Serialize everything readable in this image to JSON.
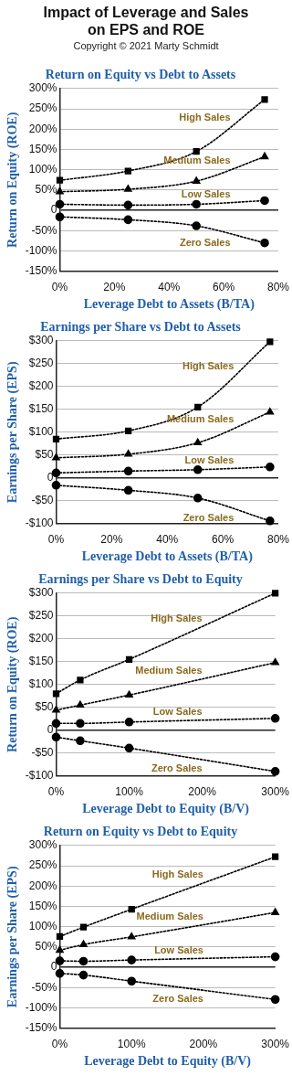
{
  "chart_data": [
    {
      "type": "other",
      "title": "Impact of Leverage and Sales on EPS and ROE",
      "subtitle": "Copyright © 2021 Marty Schmidt"
    },
    {
      "type": "line",
      "title": "Return on Equity vs Debt to Assets",
      "xlabel": "Leverage Debt to Assets (B/TA)",
      "ylabel": "Return on Equity (ROE)",
      "x": [
        0,
        25,
        50,
        75
      ],
      "xlim": [
        0,
        80
      ],
      "xticks": [
        {
          "value": 0,
          "label": "0%"
        },
        {
          "value": 20,
          "label": "20%"
        },
        {
          "value": 40,
          "label": "40%"
        },
        {
          "value": 60,
          "label": "60%"
        },
        {
          "value": 80,
          "label": "80%"
        }
      ],
      "ylim": [
        -150,
        300
      ],
      "yticks": [
        {
          "value": -150,
          "label": "-150%"
        },
        {
          "value": -100,
          "label": "-100%"
        },
        {
          "value": -50,
          "label": "-50%"
        },
        {
          "value": 0,
          "label": "0"
        },
        {
          "value": 50,
          "label": "50%"
        },
        {
          "value": 100,
          "label": "100%"
        },
        {
          "value": 150,
          "label": "150%"
        },
        {
          "value": 200,
          "label": "200%"
        },
        {
          "value": 250,
          "label": "250%"
        },
        {
          "value": 300,
          "label": "300%"
        }
      ],
      "grid": "y",
      "legend": false,
      "line_style": "dotted",
      "series": [
        {
          "name": "High Sales",
          "color": "#000000",
          "marker": "square",
          "values": [
            74,
            97,
            145,
            273
          ]
        },
        {
          "name": "Medium Sales",
          "color": "#000000",
          "marker": "triangle",
          "values": [
            46,
            52,
            72,
            132
          ]
        },
        {
          "name": "Low Sales",
          "color": "#000000",
          "marker": "circle",
          "values": [
            15,
            13,
            15,
            24
          ]
        },
        {
          "name": "Zero Sales",
          "color": "#000000",
          "marker": "circle",
          "values": [
            -16,
            -23,
            -38,
            -80
          ]
        }
      ]
    },
    {
      "type": "line",
      "title": "Earnings per Share vs Debt to Assets",
      "xlabel": "Leverage Debt to Assets (B/TA)",
      "ylabel": "Earnings per Share (EPS)",
      "x": [
        0,
        26,
        51,
        77
      ],
      "xlim": [
        0,
        80
      ],
      "xticks": [
        {
          "value": 0,
          "label": "0%"
        },
        {
          "value": 20,
          "label": "20%"
        },
        {
          "value": 40,
          "label": "40%"
        },
        {
          "value": 60,
          "label": "60%"
        },
        {
          "value": 80,
          "label": "80%"
        }
      ],
      "ylim": [
        -100,
        300
      ],
      "yticks": [
        {
          "value": -100,
          "label": "-$100"
        },
        {
          "value": -50,
          "label": "-$50"
        },
        {
          "value": 0,
          "label": "0"
        },
        {
          "value": 50,
          "label": "$50"
        },
        {
          "value": 100,
          "label": "$100"
        },
        {
          "value": 150,
          "label": "$150"
        },
        {
          "value": 200,
          "label": "$200"
        },
        {
          "value": 250,
          "label": "$250"
        },
        {
          "value": 300,
          "label": "$300"
        }
      ],
      "grid": "y",
      "legend": false,
      "line_style": "dotted",
      "series": [
        {
          "name": "High Sales",
          "color": "#000000",
          "marker": "square",
          "values": [
            85,
            103,
            155,
            298
          ]
        },
        {
          "name": "Medium Sales",
          "color": "#000000",
          "marker": "triangle",
          "values": [
            44,
            52,
            77,
            144
          ]
        },
        {
          "name": "Low Sales",
          "color": "#000000",
          "marker": "circle",
          "values": [
            11,
            15,
            18,
            24
          ]
        },
        {
          "name": "Zero Sales",
          "color": "#000000",
          "marker": "circle",
          "values": [
            -16,
            -27,
            -44,
            -94
          ]
        }
      ]
    },
    {
      "type": "line",
      "title": "Earnings per Share vs Debt to Equity",
      "xlabel": "Leverage Debt to Equity (B/V)",
      "ylabel": "Return on Equity (ROE)",
      "x": [
        0,
        33,
        100,
        300
      ],
      "xlim": [
        0,
        300
      ],
      "xticks": [
        {
          "value": 0,
          "label": "0%"
        },
        {
          "value": 100,
          "label": "100%"
        },
        {
          "value": 200,
          "label": "200%"
        },
        {
          "value": 300,
          "label": "300%"
        }
      ],
      "ylim": [
        -100,
        300
      ],
      "yticks": [
        {
          "value": -100,
          "label": "-$100"
        },
        {
          "value": -50,
          "label": "-$50"
        },
        {
          "value": 0,
          "label": "0"
        },
        {
          "value": 50,
          "label": "$50"
        },
        {
          "value": 100,
          "label": "$100"
        },
        {
          "value": 150,
          "label": "$150"
        },
        {
          "value": 200,
          "label": "$200"
        },
        {
          "value": 250,
          "label": "$250"
        },
        {
          "value": 300,
          "label": "$300"
        }
      ],
      "grid": "y",
      "legend": false,
      "line_style": "dotted",
      "series": [
        {
          "name": "High Sales",
          "color": "#000000",
          "marker": "square",
          "values": [
            80,
            110,
            155,
            300
          ]
        },
        {
          "name": "Medium Sales",
          "color": "#000000",
          "marker": "triangle",
          "values": [
            44,
            55,
            77,
            148
          ]
        },
        {
          "name": "Low Sales",
          "color": "#000000",
          "marker": "circle",
          "values": [
            15,
            15,
            18,
            26
          ]
        },
        {
          "name": "Zero Sales",
          "color": "#000000",
          "marker": "circle",
          "values": [
            -15,
            -23,
            -39,
            -90
          ]
        }
      ]
    },
    {
      "type": "line",
      "title": "Return on Equity vs Debt to Equity",
      "xlabel": "Leverage Debt to Equity (B/V)",
      "ylabel": "Earnings per Share (EPS)",
      "x": [
        0,
        33,
        100,
        300
      ],
      "xlim": [
        0,
        300
      ],
      "xticks": [
        {
          "value": 0,
          "label": "0%"
        },
        {
          "value": 100,
          "label": "100%"
        },
        {
          "value": 200,
          "label": "200%"
        },
        {
          "value": 300,
          "label": "300%"
        }
      ],
      "ylim": [
        -150,
        300
      ],
      "yticks": [
        {
          "value": -150,
          "label": "-150%"
        },
        {
          "value": -100,
          "label": "-100%"
        },
        {
          "value": -50,
          "label": "-50%"
        },
        {
          "value": 0,
          "label": "0"
        },
        {
          "value": 50,
          "label": "50%"
        },
        {
          "value": 100,
          "label": "100%"
        },
        {
          "value": 150,
          "label": "150%"
        },
        {
          "value": 200,
          "label": "200%"
        },
        {
          "value": 250,
          "label": "250%"
        },
        {
          "value": 300,
          "label": "300%"
        }
      ],
      "grid": "y",
      "legend": false,
      "line_style": "dotted",
      "series": [
        {
          "name": "High Sales",
          "color": "#000000",
          "marker": "square",
          "values": [
            76,
            99,
            143,
            272
          ]
        },
        {
          "name": "Medium Sales",
          "color": "#000000",
          "marker": "triangle",
          "values": [
            42,
            56,
            75,
            135
          ]
        },
        {
          "name": "Low Sales",
          "color": "#000000",
          "marker": "circle",
          "values": [
            16,
            15,
            18,
            26
          ]
        },
        {
          "name": "Zero Sales",
          "color": "#000000",
          "marker": "circle",
          "values": [
            -15,
            -19,
            -34,
            -79
          ]
        }
      ]
    }
  ]
}
